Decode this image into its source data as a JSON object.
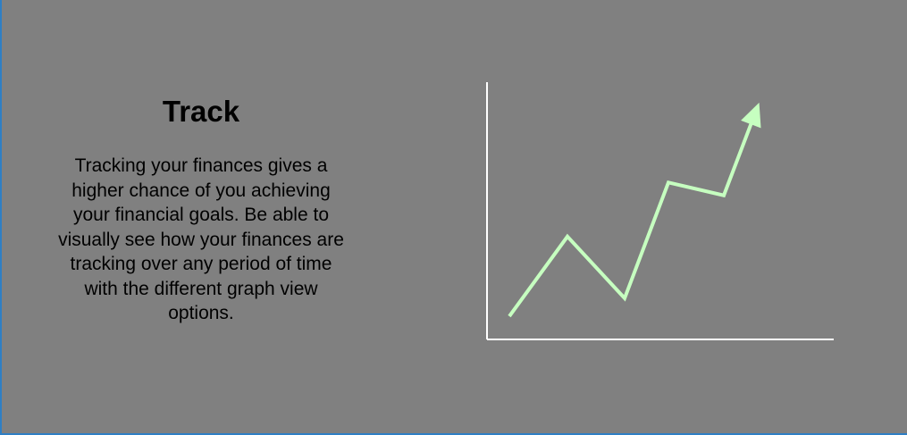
{
  "feature": {
    "title": "Track",
    "description": "Tracking your finances gives a higher chance of you achieving your financial goals. Be able to visually see how your finances are tracking over any period of time with the different graph view options."
  },
  "colors": {
    "background": "#808080",
    "axis": "#ffffff",
    "trend_line": "#c6ffc0",
    "frame_edge": "#2f7fc4"
  },
  "illustration": {
    "icon": "upward-trend-arrow-icon",
    "trend_levels": [
      0.09,
      0.4,
      0.16,
      0.61,
      0.56,
      0.87
    ]
  }
}
